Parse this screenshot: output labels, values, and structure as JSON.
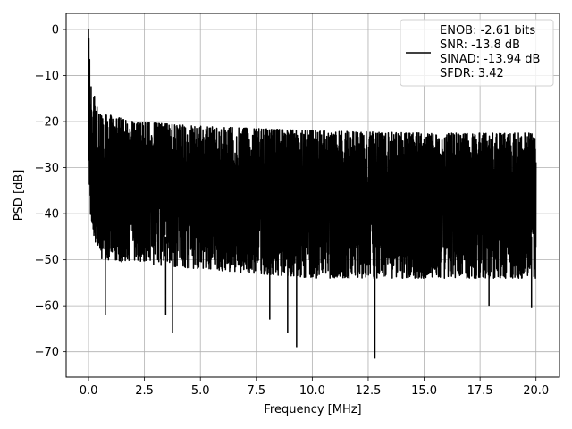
{
  "chart_data": {
    "type": "line",
    "title": "",
    "xlabel": "Frequency [MHz]",
    "ylabel": "PSD [dB]",
    "xlim": [
      -1.0,
      21.05
    ],
    "ylim": [
      -75.5,
      3.5
    ],
    "x_ticks": [
      0.0,
      2.5,
      5.0,
      7.5,
      10.0,
      12.5,
      15.0,
      17.5,
      20.0
    ],
    "x_tick_labels": [
      "0.0",
      "2.5",
      "5.0",
      "7.5",
      "10.0",
      "12.5",
      "15.0",
      "17.5",
      "20.0"
    ],
    "y_ticks": [
      0,
      -10,
      -20,
      -30,
      -40,
      -50,
      -60,
      -70
    ],
    "y_tick_labels": [
      "0",
      "−10",
      "−20",
      "−30",
      "−40",
      "−50",
      "−60",
      "−70"
    ],
    "grid": true,
    "legend_position": "top-right",
    "series": [
      {
        "color": "#000000",
        "x_range": [
          0.0,
          20.0
        ],
        "legend_text": [
          "ENOB: -2.61 bits",
          "SNR: -13.8 dB",
          "SINAD: -13.94 dB",
          "SFDR: 3.42"
        ],
        "envelope_upper": [
          [
            0.0,
            0
          ],
          [
            0.1,
            -12
          ],
          [
            0.5,
            -18
          ],
          [
            2.0,
            -20
          ],
          [
            5.0,
            -21
          ],
          [
            10.0,
            -22
          ],
          [
            15.0,
            -22.5
          ],
          [
            20.0,
            -22.5
          ]
        ],
        "envelope_lower": [
          [
            0.0,
            -20
          ],
          [
            0.1,
            -42
          ],
          [
            0.5,
            -50
          ],
          [
            5.0,
            -52
          ],
          [
            10.0,
            -54
          ],
          [
            15.0,
            -54
          ],
          [
            20.0,
            -54
          ]
        ],
        "noise_center": -35,
        "deep_dips": [
          [
            0.75,
            -62
          ],
          [
            3.45,
            -62
          ],
          [
            3.75,
            -66
          ],
          [
            8.1,
            -63
          ],
          [
            8.9,
            -66
          ],
          [
            9.3,
            -69
          ],
          [
            12.8,
            -71.5
          ],
          [
            17.9,
            -60
          ],
          [
            19.8,
            -60.5
          ]
        ]
      }
    ]
  }
}
